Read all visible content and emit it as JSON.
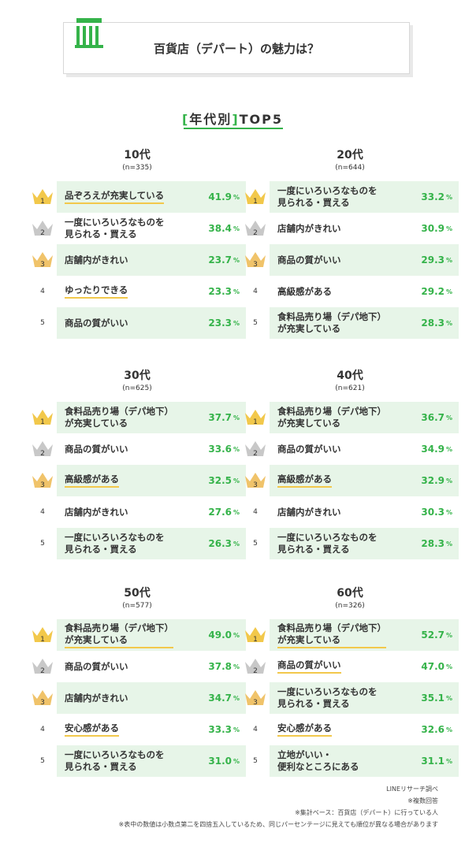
{
  "title": "百貨店（デパート）の魅力は？",
  "subtitle": {
    "open": "[",
    "text": "年代別",
    "close": "]",
    "suffix": "TOP5"
  },
  "colors": {
    "accent": "#35b34a",
    "cell": "#e7f5e8",
    "gold": "#f2c84b",
    "silver": "#c8c8c8",
    "bronze": "#f0c36a",
    "underline": "#f2c84b"
  },
  "chart_data": {
    "type": "table",
    "unit": "%",
    "panels": [
      {
        "age": "10代",
        "n": "(n=335)",
        "rows": [
          {
            "rank": "1",
            "label": "品ぞろえが充実している",
            "value": 41.9,
            "underline": true
          },
          {
            "rank": "2",
            "label": "一度にいろいろなものを\n見られる・買える",
            "value": 38.4,
            "underline": false
          },
          {
            "rank": "3",
            "label": "店舗内がきれい",
            "value": 23.7,
            "underline": false
          },
          {
            "rank": "4",
            "label": "ゆったりできる",
            "value": 23.3,
            "underline": true
          },
          {
            "rank": "5",
            "label": "商品の質がいい",
            "value": 23.3,
            "underline": false
          }
        ]
      },
      {
        "age": "20代",
        "n": "(n=644)",
        "rows": [
          {
            "rank": "1",
            "label": "一度にいろいろなものを\n見られる・買える",
            "value": 33.2,
            "underline": false
          },
          {
            "rank": "2",
            "label": "店舗内がきれい",
            "value": 30.9,
            "underline": false
          },
          {
            "rank": "3",
            "label": "商品の質がいい",
            "value": 29.3,
            "underline": false
          },
          {
            "rank": "4",
            "label": "高級感がある",
            "value": 29.2,
            "underline": false
          },
          {
            "rank": "5",
            "label": "食料品売り場（デパ地下）\nが充実している",
            "value": 28.3,
            "underline": false
          }
        ]
      },
      {
        "age": "30代",
        "n": "(n=625)",
        "rows": [
          {
            "rank": "1",
            "label": "食料品売り場（デパ地下）\nが充実している",
            "value": 37.7,
            "underline": false
          },
          {
            "rank": "2",
            "label": "商品の質がいい",
            "value": 33.6,
            "underline": false
          },
          {
            "rank": "3",
            "label": "高級感がある",
            "value": 32.5,
            "underline": true
          },
          {
            "rank": "4",
            "label": "店舗内がきれい",
            "value": 27.6,
            "underline": false
          },
          {
            "rank": "5",
            "label": "一度にいろいろなものを\n見られる・買える",
            "value": 26.3,
            "underline": false
          }
        ]
      },
      {
        "age": "40代",
        "n": "(n=621)",
        "rows": [
          {
            "rank": "1",
            "label": "食料品売り場（デパ地下）\nが充実している",
            "value": 36.7,
            "underline": false
          },
          {
            "rank": "2",
            "label": "商品の質がいい",
            "value": 34.9,
            "underline": false
          },
          {
            "rank": "3",
            "label": "高級感がある",
            "value": 32.9,
            "underline": true
          },
          {
            "rank": "4",
            "label": "店舗内がきれい",
            "value": 30.3,
            "underline": false
          },
          {
            "rank": "5",
            "label": "一度にいろいろなものを\n見られる・買える",
            "value": 28.3,
            "underline": false
          }
        ]
      },
      {
        "age": "50代",
        "n": "(n=577)",
        "rows": [
          {
            "rank": "1",
            "label": "食料品売り場（デパ地下）\nが充実している",
            "value": 49.0,
            "underline": true
          },
          {
            "rank": "2",
            "label": "商品の質がいい",
            "value": 37.8,
            "underline": false
          },
          {
            "rank": "3",
            "label": "店舗内がきれい",
            "value": 34.7,
            "underline": false
          },
          {
            "rank": "4",
            "label": "安心感がある",
            "value": 33.3,
            "underline": true
          },
          {
            "rank": "5",
            "label": "一度にいろいろなものを\n見られる・買える",
            "value": 31.0,
            "underline": false
          }
        ]
      },
      {
        "age": "60代",
        "n": "(n=326)",
        "rows": [
          {
            "rank": "1",
            "label": "食料品売り場（デパ地下）\nが充実している",
            "value": 52.7,
            "underline": true
          },
          {
            "rank": "2",
            "label": "商品の質がいい",
            "value": 47.0,
            "underline": true
          },
          {
            "rank": "3",
            "label": "一度にいろいろなものを\n見られる・買える",
            "value": 35.1,
            "underline": false
          },
          {
            "rank": "4",
            "label": "安心感がある",
            "value": 32.6,
            "underline": true
          },
          {
            "rank": "5",
            "label": "立地がいい・\n便利なところにある",
            "value": 31.1,
            "underline": false
          }
        ]
      }
    ]
  },
  "notes": [
    "LINEリサーチ調べ",
    "※複数回答",
    "※集計ベース：百貨店（デパート）に行っている人",
    "※表中の数値は小数点第二を四捨五入しているため、同じパーセンテージに見えても順位が異なる場合があります"
  ]
}
